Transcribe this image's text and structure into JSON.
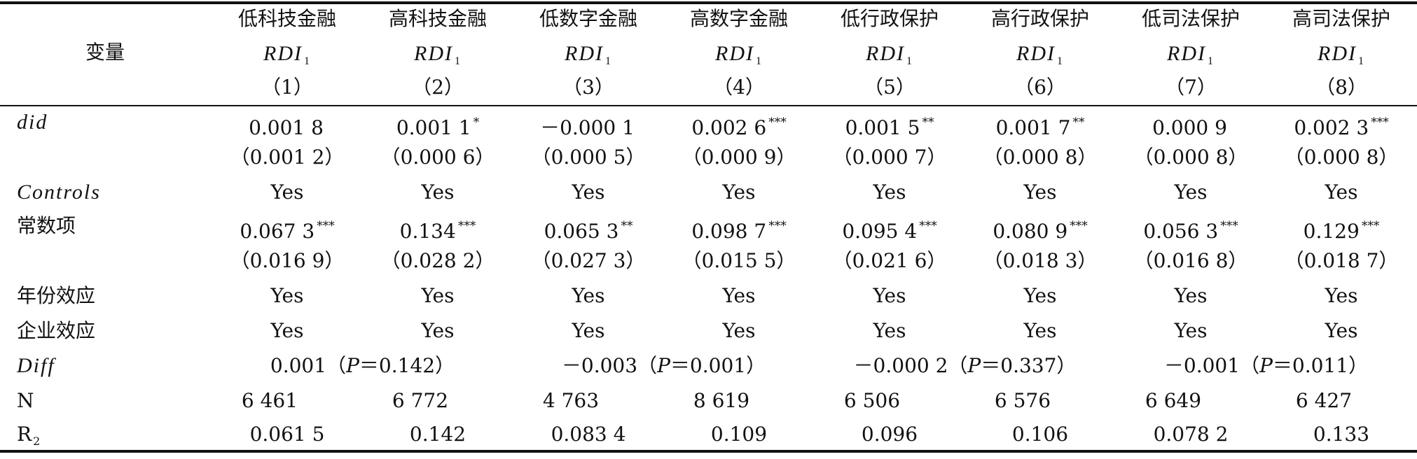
{
  "header": {
    "variable_label": "变量",
    "columns": [
      {
        "group": "低科技金融",
        "dep_var": "RDI",
        "dep_sub": "1",
        "num": "（1）"
      },
      {
        "group": "高科技金融",
        "dep_var": "RDI",
        "dep_sub": "1",
        "num": "（2）"
      },
      {
        "group": "低数字金融",
        "dep_var": "RDI",
        "dep_sub": "1",
        "num": "（3）"
      },
      {
        "group": "高数字金融",
        "dep_var": "RDI",
        "dep_sub": "1",
        "num": "（4）"
      },
      {
        "group": "低行政保护",
        "dep_var": "RDI",
        "dep_sub": "1",
        "num": "（5）"
      },
      {
        "group": "高行政保护",
        "dep_var": "RDI",
        "dep_sub": "1",
        "num": "（6）"
      },
      {
        "group": "低司法保护",
        "dep_var": "RDI",
        "dep_sub": "1",
        "num": "（7）"
      },
      {
        "group": "高司法保护",
        "dep_var": "RDI",
        "dep_sub": "1",
        "num": "（8）"
      }
    ]
  },
  "rows": {
    "did": {
      "label": "did",
      "coef": [
        {
          "v": "0.001 8",
          "s": ""
        },
        {
          "v": "0.001 1",
          "s": "*"
        },
        {
          "v": "－0.000 1",
          "s": ""
        },
        {
          "v": "0.002 6",
          "s": "***"
        },
        {
          "v": "0.001 5",
          "s": "**"
        },
        {
          "v": "0.001 7",
          "s": "**"
        },
        {
          "v": "0.000 9",
          "s": ""
        },
        {
          "v": "0.002 3",
          "s": "***"
        }
      ],
      "se": [
        "（0.001 2）",
        "（0.000 6）",
        "（0.000 5）",
        "（0.000 9）",
        "（0.000 7）",
        "（0.000 8）",
        "（0.000 8）",
        "（0.000 8）"
      ]
    },
    "controls": {
      "label": "Controls",
      "values": [
        "Yes",
        "Yes",
        "Yes",
        "Yes",
        "Yes",
        "Yes",
        "Yes",
        "Yes"
      ]
    },
    "constant": {
      "label": "常数项",
      "coef": [
        {
          "v": "0.067 3",
          "s": "***"
        },
        {
          "v": "0.134",
          "s": "***"
        },
        {
          "v": "0.065 3",
          "s": "**"
        },
        {
          "v": "0.098 7",
          "s": "***"
        },
        {
          "v": "0.095 4",
          "s": "***"
        },
        {
          "v": "0.080 9",
          "s": "***"
        },
        {
          "v": "0.056 3",
          "s": "***"
        },
        {
          "v": "0.129",
          "s": "***"
        }
      ],
      "se": [
        "（0.016 9）",
        "（0.028 2）",
        "（0.027 3）",
        "（0.015 5）",
        "（0.021 6）",
        "（0.018 3）",
        "（0.016 8）",
        "（0.018 7）"
      ]
    },
    "year_effect": {
      "label": "年份效应",
      "values": [
        "Yes",
        "Yes",
        "Yes",
        "Yes",
        "Yes",
        "Yes",
        "Yes",
        "Yes"
      ]
    },
    "firm_effect": {
      "label": "企业效应",
      "values": [
        "Yes",
        "Yes",
        "Yes",
        "Yes",
        "Yes",
        "Yes",
        "Yes",
        "Yes"
      ]
    },
    "diff": {
      "label": "Diff",
      "values": [
        {
          "pre": "0.001（",
          "p": "P",
          "post": "＝0.142）"
        },
        {
          "pre": "－0.003（",
          "p": "P",
          "post": "＝0.001）"
        },
        {
          "pre": "－0.000 2（",
          "p": "P",
          "post": "＝0.337）"
        },
        {
          "pre": "－0.001（",
          "p": "P",
          "post": "＝0.011）"
        }
      ]
    },
    "n": {
      "label": "N",
      "values": [
        "6 461",
        "6 772",
        "4 763",
        "8 619",
        "6 506",
        "6 576",
        "6 649",
        "6 427"
      ]
    },
    "r2": {
      "label": "R",
      "label_sub": "2",
      "values": [
        "0.061 5",
        "0.142",
        "0.083 4",
        "0.109",
        "0.096",
        "0.106",
        "0.078 2",
        "0.133"
      ]
    }
  }
}
